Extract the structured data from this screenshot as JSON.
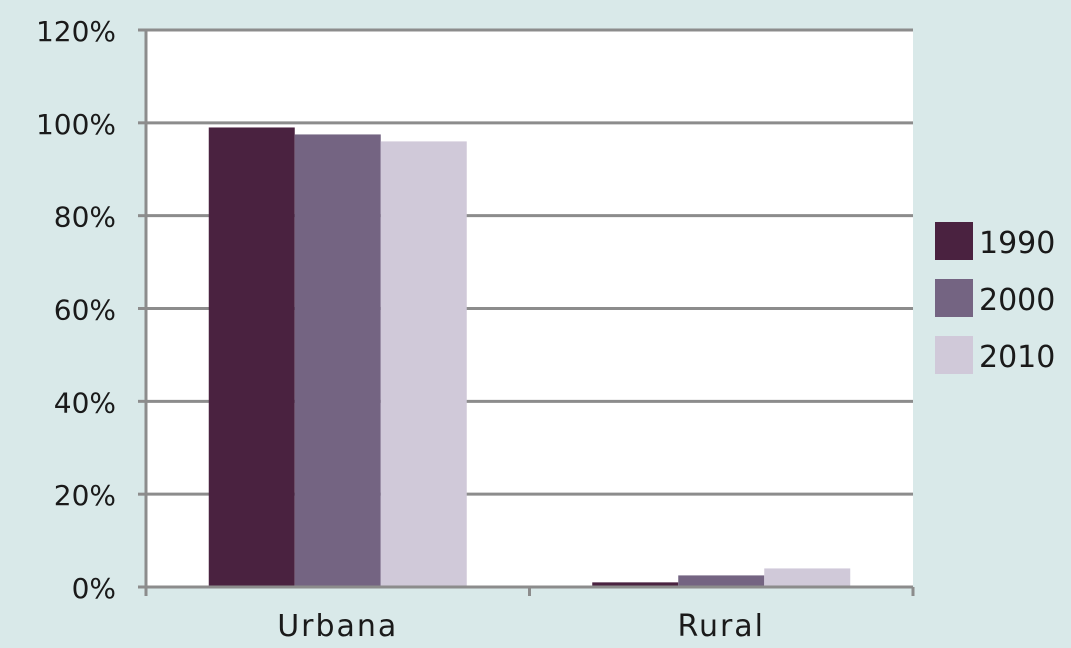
{
  "chart_data": {
    "type": "bar",
    "categories": [
      "Urbana",
      "Rural"
    ],
    "series": [
      {
        "name": "1990",
        "color": "#4a2240",
        "values": [
          99,
          1
        ]
      },
      {
        "name": "2000",
        "color": "#746482",
        "values": [
          97.5,
          2.5
        ]
      },
      {
        "name": "2010",
        "color": "#d0c9d9",
        "values": [
          96,
          4
        ]
      }
    ],
    "yticks": [
      "0%",
      "20%",
      "40%",
      "60%",
      "80%",
      "100%",
      "120%"
    ],
    "ylim": [
      0,
      120
    ],
    "grid": true,
    "legend_position": "right",
    "colors": {
      "plot_background": "#ffffff",
      "page_background": "#d9e9e9",
      "gridline": "#8c8c8c",
      "axis": "#8c8c8c"
    }
  }
}
